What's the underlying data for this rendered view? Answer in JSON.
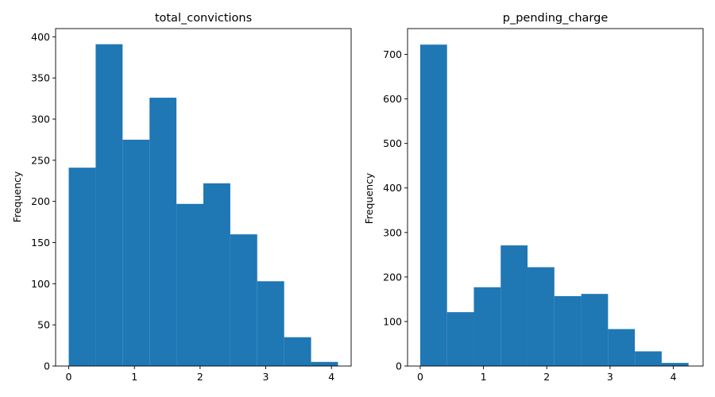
{
  "chart_data": [
    {
      "type": "bar",
      "title": "total_convictions",
      "xlabel": "",
      "ylabel": "Frequency",
      "xlim": [
        -0.2,
        4.3
      ],
      "ylim": [
        0,
        410
      ],
      "xticks": [
        0,
        1,
        2,
        3,
        4
      ],
      "yticks": [
        0,
        50,
        100,
        150,
        200,
        250,
        300,
        350,
        400
      ],
      "bin_edges": [
        0.0,
        0.41,
        0.82,
        1.23,
        1.64,
        2.05,
        2.46,
        2.87,
        3.28,
        3.69,
        4.1
      ],
      "values": [
        241,
        391,
        275,
        326,
        197,
        222,
        160,
        103,
        35,
        5
      ],
      "color": "#1f77b4",
      "grid": false
    },
    {
      "type": "bar",
      "title": "p_pending_charge",
      "xlabel": "",
      "ylabel": "Frequency",
      "xlim": [
        -0.2,
        4.47
      ],
      "ylim": [
        0,
        758
      ],
      "xticks": [
        0,
        1,
        2,
        3,
        4
      ],
      "yticks": [
        0,
        100,
        200,
        300,
        400,
        500,
        600,
        700
      ],
      "bin_edges": [
        0.0,
        0.424,
        0.848,
        1.272,
        1.696,
        2.12,
        2.544,
        2.968,
        3.392,
        3.816,
        4.24
      ],
      "values": [
        722,
        121,
        177,
        271,
        222,
        157,
        162,
        83,
        33,
        7
      ],
      "color": "#1f77b4",
      "grid": false
    }
  ]
}
